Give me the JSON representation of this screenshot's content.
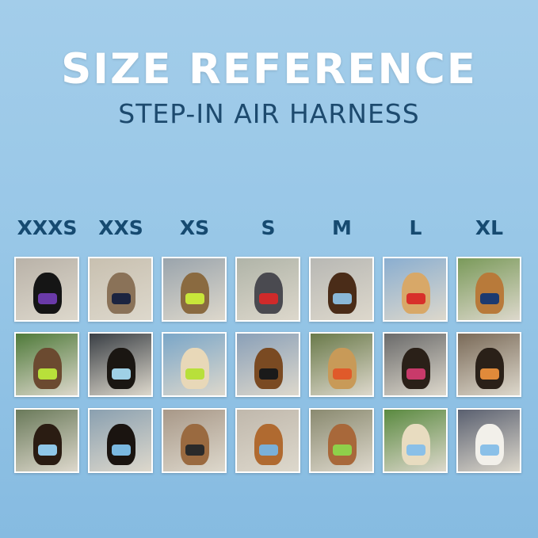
{
  "header": {
    "title": "SIZE REFERENCE",
    "subtitle": "STEP-IN AIR HARNESS"
  },
  "sizes": [
    {
      "label": "XXXS",
      "tiles": [
        {
          "bg": "#b9b2a8",
          "pet": "#151515",
          "harness": "#6a3aa8"
        },
        {
          "bg": "#4f7a3a",
          "pet": "#6b4a30",
          "harness": "#b8e03a"
        },
        {
          "bg": "#6a7a5a",
          "pet": "#2a1c12",
          "harness": "#8fc7e8"
        }
      ]
    },
    {
      "label": "XXS",
      "tiles": [
        {
          "bg": "#c8c0b0",
          "pet": "#8a7258",
          "harness": "#1c2440"
        },
        {
          "bg": "#3a3f45",
          "pet": "#1a1612",
          "harness": "#9fd0e6"
        },
        {
          "bg": "#8aa0b0",
          "pet": "#1a1410",
          "harness": "#7ab8e0"
        }
      ]
    },
    {
      "label": "XS",
      "tiles": [
        {
          "bg": "#9aa4ac",
          "pet": "#8a6a40",
          "harness": "#c8e63a"
        },
        {
          "bg": "#7aa6c8",
          "pet": "#e8d8b8",
          "harness": "#b8e03a"
        },
        {
          "bg": "#a89888",
          "pet": "#9a6a40",
          "harness": "#2a2a2a"
        }
      ]
    },
    {
      "label": "S",
      "tiles": [
        {
          "bg": "#b0b4a8",
          "pet": "#4a4a50",
          "harness": "#d02a2a"
        },
        {
          "bg": "#8aa0b8",
          "pet": "#7a4a22",
          "harness": "#1a1a1a"
        },
        {
          "bg": "#c0b8ac",
          "pet": "#b06a30",
          "harness": "#7ab0d8"
        }
      ]
    },
    {
      "label": "M",
      "tiles": [
        {
          "bg": "#b8b8b4",
          "pet": "#4a2c18",
          "harness": "#8ab8d8"
        },
        {
          "bg": "#6a7a4a",
          "pet": "#c89a58",
          "harness": "#e05a2a"
        },
        {
          "bg": "#8a8a70",
          "pet": "#a8683a",
          "harness": "#8ed04a"
        }
      ]
    },
    {
      "label": "L",
      "tiles": [
        {
          "bg": "#8aaed0",
          "pet": "#d8a868",
          "harness": "#d8302a"
        },
        {
          "bg": "#6a6a6a",
          "pet": "#2a2018",
          "harness": "#c83a6a"
        },
        {
          "bg": "#5a8a40",
          "pet": "#e8dcc0",
          "harness": "#8ac0e8"
        }
      ]
    },
    {
      "label": "XL",
      "tiles": [
        {
          "bg": "#7a9a5a",
          "pet": "#b87a3a",
          "harness": "#1c3a70"
        },
        {
          "bg": "#7a6a58",
          "pet": "#2a2018",
          "harness": "#e08a3a"
        },
        {
          "bg": "#5a6070",
          "pet": "#f2f0ea",
          "harness": "#8ac0e8"
        }
      ]
    }
  ]
}
